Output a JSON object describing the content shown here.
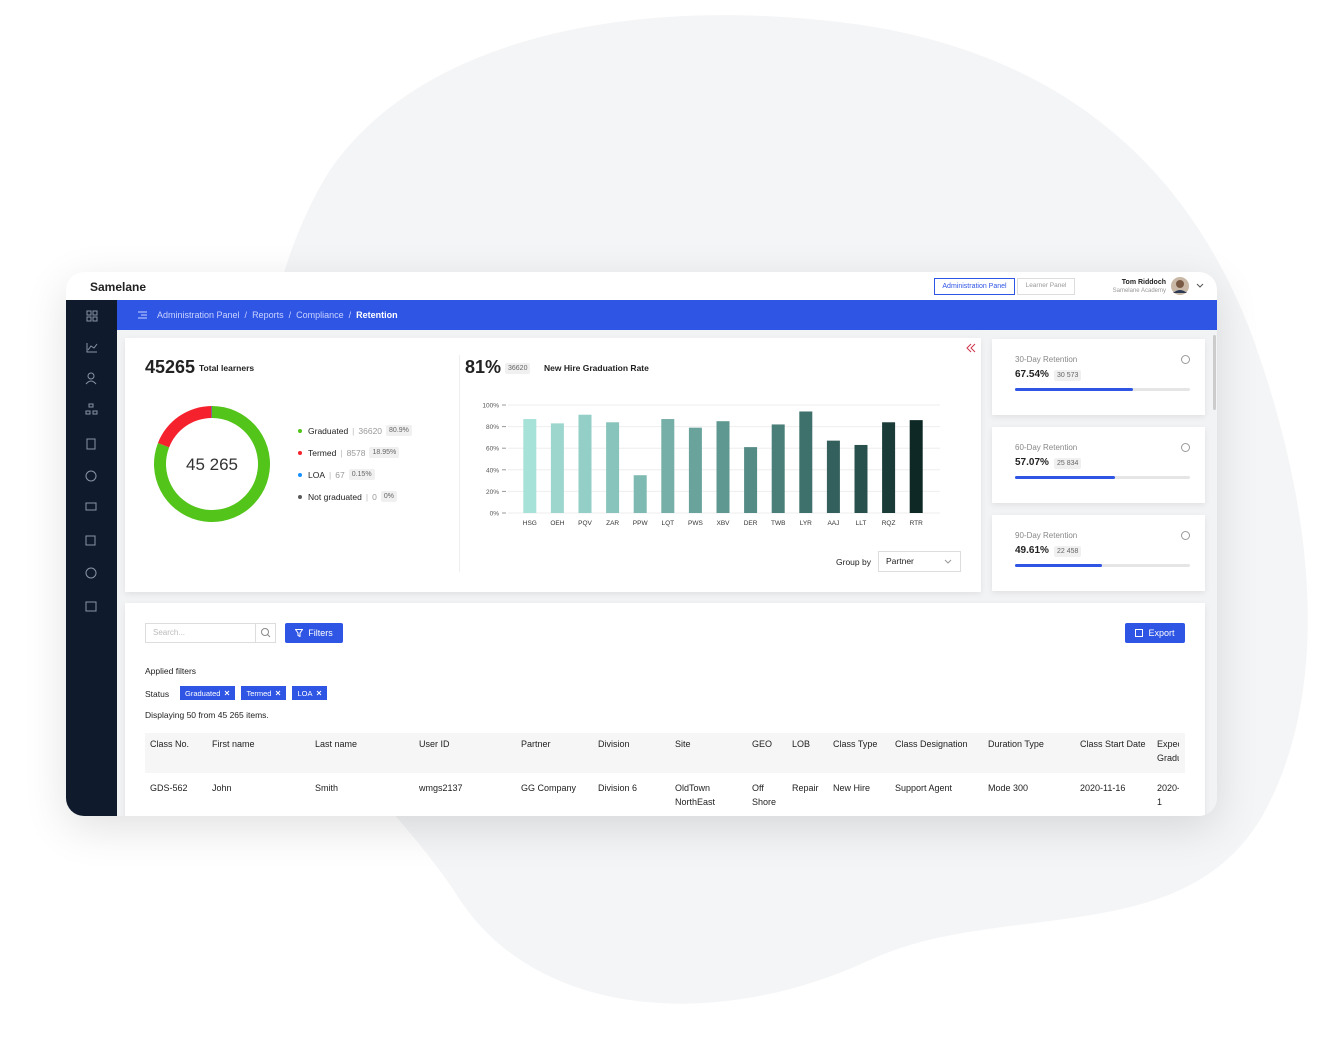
{
  "header": {
    "logo": "Samelane",
    "tabs": [
      "Administration Panel",
      "Learner Panel"
    ],
    "user_name": "Tom Riddoch",
    "user_org": "Samelane Academy"
  },
  "breadcrumb": [
    "Administration Panel",
    "Reports",
    "Compliance",
    "Retention"
  ],
  "summary": {
    "total": "45265",
    "total_label": "Total learners",
    "rate": "81%",
    "rate_count": "36620",
    "rate_label": "New Hire Graduation Rate"
  },
  "chart_data": [
    {
      "type": "pie",
      "donut": true,
      "center_label": "45 265",
      "categories": [
        "Graduated",
        "Termed",
        "LOA",
        "Not graduated"
      ],
      "values": [
        36620,
        8578,
        67,
        0
      ],
      "percent_labels": [
        "80.9%",
        "18.95%",
        "0.15%",
        "0%"
      ],
      "colors": [
        "#52c41a",
        "#f5222d",
        "#1890ff",
        "#595959"
      ]
    },
    {
      "type": "bar",
      "categories": [
        "HSG",
        "OEH",
        "PQV",
        "ZAR",
        "PPW",
        "LQT",
        "PWS",
        "XBV",
        "DER",
        "TWB",
        "LYR",
        "AAJ",
        "LLT",
        "RQZ",
        "RTR"
      ],
      "values": [
        87,
        83,
        91,
        84,
        35,
        87,
        79,
        85,
        61,
        82,
        94,
        67,
        63,
        84,
        86
      ],
      "colors": [
        "#a7e2d9",
        "#9cd6cd",
        "#93cfc6",
        "#88c4bb",
        "#7fbab2",
        "#75afa7",
        "#6aa39c",
        "#5f9791",
        "#548b85",
        "#4a7f79",
        "#3f716c",
        "#33605c",
        "#28504c",
        "#1a3b38",
        "#0e2826"
      ],
      "ylim": [
        0,
        100
      ],
      "yticks": [
        {
          "value": 0,
          "label": "0%"
        },
        {
          "value": 20,
          "label": "20%"
        },
        {
          "value": 40,
          "label": "40%"
        },
        {
          "value": 60,
          "label": "60%"
        },
        {
          "value": 80,
          "label": "80%"
        },
        {
          "value": 100,
          "label": "100%"
        }
      ],
      "grid": true
    }
  ],
  "group_by": {
    "label": "Group by",
    "value": "Partner"
  },
  "retention_cards": [
    {
      "title": "30-Day Retention",
      "value": 67.54,
      "value_label": "67.54%",
      "count": "30 573"
    },
    {
      "title": "60-Day Retention",
      "value": 57.07,
      "value_label": "57.07%",
      "count": "25 834"
    },
    {
      "title": "90-Day Retention",
      "value": 49.61,
      "value_label": "49.61%",
      "count": "22 458"
    }
  ],
  "filters": {
    "search_placeholder": "Search...",
    "filters_button": "Filters",
    "export_button": "Export",
    "applied_label": "Applied filters",
    "status_label": "Status",
    "chips": [
      "Graduated",
      "Termed",
      "LOA"
    ],
    "displaying": "Displaying 50 from 45 265 items."
  },
  "table": {
    "columns": [
      "Class No.",
      "First name",
      "Last name",
      "User ID",
      "Partner",
      "Division",
      "Site",
      "GEO",
      "LOB",
      "Class Type",
      "Class Designation",
      "Duration Type",
      "Class Start Date",
      "Expected Graduation"
    ],
    "rows": [
      [
        "GDS-562",
        "John",
        "Smith",
        "wmgs2137",
        "GG Company",
        "Division 6",
        "OldTown NorthEast",
        "Off Shore",
        "Repair",
        "New Hire",
        "Support Agent",
        "Mode 300",
        "2020-11-16",
        "2020-1"
      ]
    ]
  }
}
